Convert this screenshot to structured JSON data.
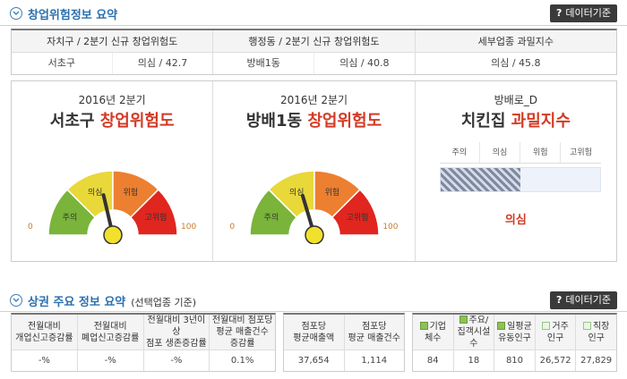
{
  "section1": {
    "title": "창업위험정보 요약",
    "data_button": "데이터기준",
    "data_button_mark": "?"
  },
  "summary": {
    "headers": [
      "자치구 / 2분기 신규 창업위험도",
      "행정동 / 2분기 신규 창업위험도",
      "세부업종 과밀지수"
    ],
    "rows": [
      {
        "name": "서초구",
        "value": "의심 / 42.7"
      },
      {
        "name": "방배1동",
        "value": "의심 / 40.8"
      },
      {
        "name": "",
        "value": "의심 / 45.8"
      }
    ]
  },
  "gauges": [
    {
      "period": "2016년 2분기",
      "name": "서초구",
      "metric": "창업위험도",
      "value": 42.7,
      "min": "0",
      "max": "100"
    },
    {
      "period": "2016년 2분기",
      "name": "방배1동",
      "metric": "창업위험도",
      "value": 40.8,
      "min": "0",
      "max": "100"
    }
  ],
  "gauge_labels": [
    "주의",
    "의심",
    "위험",
    "고위험"
  ],
  "gauge_colors": [
    "#7ab43a",
    "#e9d83a",
    "#ed7f30",
    "#e0261e"
  ],
  "density": {
    "subtitle": "방배로_D",
    "name": "치킨집",
    "metric": "과밀지수",
    "levels": [
      "주의",
      "의심",
      "위험",
      "고위험"
    ],
    "fill_fraction": 0.5,
    "result": "의심"
  },
  "section2": {
    "title": "상권 주요 정보 요약",
    "subtitle": "(선택업종 기준)",
    "data_button": "데이터기준",
    "data_button_mark": "?"
  },
  "table_a": {
    "headers": [
      [
        "전월대비",
        "개업신고증감률"
      ],
      [
        "전월대비",
        "폐업신고증감률"
      ],
      [
        "전월대비 3년이상",
        "점포 생존증감률"
      ],
      [
        "전월대비 점포당",
        "평균 매출건수 증감률"
      ]
    ],
    "values": [
      "-%",
      "-%",
      "-%",
      "0.1%"
    ]
  },
  "table_b": {
    "headers": [
      [
        "점포당",
        "평균매출액"
      ],
      [
        "점포당",
        "평균 매출건수"
      ]
    ],
    "values": [
      "37,654",
      "1,114"
    ]
  },
  "table_c": {
    "headers": [
      {
        "icon": "dark",
        "lines": [
          "기업",
          "체수"
        ]
      },
      {
        "icon": "dark",
        "lines": [
          "주요/",
          "집객시설수"
        ]
      },
      {
        "icon": "dark",
        "lines": [
          "일평균",
          "유동인구"
        ]
      },
      {
        "icon": "light",
        "lines": [
          "거주",
          "인구"
        ]
      },
      {
        "icon": "light",
        "lines": [
          "직장",
          "인구"
        ]
      }
    ],
    "values": [
      "84",
      "18",
      "810",
      "26,572",
      "27,829"
    ]
  }
}
